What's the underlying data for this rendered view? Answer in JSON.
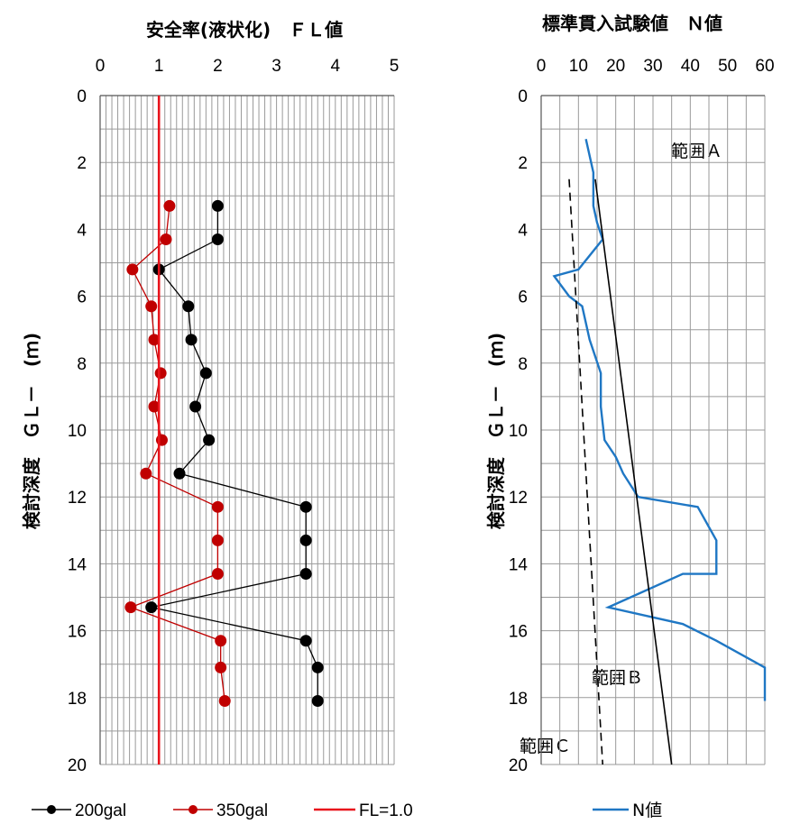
{
  "chart_data": [
    {
      "type": "line",
      "title": "安全率(液状化)　ＦＬ値",
      "ylabel": "検討深度　ＧＬ－　(ｍ)",
      "xlim": [
        0,
        5
      ],
      "ylim": [
        0,
        20
      ],
      "y_inverted": true,
      "x_ticks": [
        "0",
        "1",
        "2",
        "3",
        "4",
        "5"
      ],
      "y_ticks": [
        "0",
        "2",
        "4",
        "6",
        "8",
        "10",
        "12",
        "14",
        "16",
        "18",
        "20"
      ],
      "grid": true,
      "legend_position": "bottom",
      "series": [
        {
          "name": "200gal",
          "color": "#000000",
          "marker": "circle",
          "points": [
            [
              2.0,
              3.3
            ],
            [
              2.0,
              4.3
            ],
            [
              1.0,
              5.2
            ],
            [
              1.5,
              6.3
            ],
            [
              1.55,
              7.3
            ],
            [
              1.8,
              8.3
            ],
            [
              1.62,
              9.3
            ],
            [
              1.85,
              10.3
            ],
            [
              1.35,
              11.3
            ],
            [
              3.5,
              12.3
            ],
            [
              3.5,
              13.3
            ],
            [
              3.5,
              14.3
            ],
            [
              0.87,
              15.3
            ],
            [
              3.5,
              16.3
            ],
            [
              3.7,
              17.1
            ],
            [
              3.7,
              18.1
            ]
          ]
        },
        {
          "name": "350gal",
          "color": "#c00000",
          "marker": "circle",
          "points": [
            [
              1.18,
              3.3
            ],
            [
              1.12,
              4.3
            ],
            [
              0.55,
              5.2
            ],
            [
              0.87,
              6.3
            ],
            [
              0.92,
              7.3
            ],
            [
              1.03,
              8.3
            ],
            [
              0.92,
              9.3
            ],
            [
              1.05,
              10.3
            ],
            [
              0.78,
              11.3
            ],
            [
              2.0,
              12.3
            ],
            [
              2.0,
              13.3
            ],
            [
              2.0,
              14.3
            ],
            [
              0.52,
              15.3
            ],
            [
              2.05,
              16.3
            ],
            [
              2.05,
              17.1
            ],
            [
              2.12,
              18.1
            ]
          ]
        },
        {
          "name": "FL=1.0",
          "color": "#e8141c",
          "marker": "none",
          "points": [
            [
              1.0,
              0
            ],
            [
              1.0,
              20
            ]
          ]
        }
      ]
    },
    {
      "type": "line",
      "title": "標準貫入試験値　Ｎ値",
      "ylabel": "検討深度　ＧＬ－　(ｍ)",
      "xlim": [
        0,
        60
      ],
      "ylim": [
        0,
        20
      ],
      "y_inverted": true,
      "x_ticks": [
        "0",
        "10",
        "20",
        "30",
        "40",
        "50",
        "60"
      ],
      "y_ticks": [
        "0",
        "2",
        "4",
        "6",
        "8",
        "10",
        "12",
        "14",
        "16",
        "18",
        "20"
      ],
      "grid": true,
      "legend_position": "bottom",
      "annotations": [
        "範囲Ａ",
        "範囲Ｂ",
        "範囲Ｃ"
      ],
      "series": [
        {
          "name": "N値",
          "color": "#1f77c4",
          "marker": "none",
          "points": [
            [
              12,
              1.3
            ],
            [
              14,
              2.3
            ],
            [
              14,
              3.3
            ],
            [
              15,
              3.8
            ],
            [
              16.5,
              4.3
            ],
            [
              10,
              5.2
            ],
            [
              3.5,
              5.4
            ],
            [
              7.5,
              6.0
            ],
            [
              11,
              6.3
            ],
            [
              13,
              7.3
            ],
            [
              16,
              8.3
            ],
            [
              16,
              9.3
            ],
            [
              17,
              10.3
            ],
            [
              20,
              10.8
            ],
            [
              22,
              11.3
            ],
            [
              26,
              12.0
            ],
            [
              42,
              12.3
            ],
            [
              47,
              13.3
            ],
            [
              47,
              14.3
            ],
            [
              38,
              14.3
            ],
            [
              18,
              15.3
            ],
            [
              38,
              15.8
            ],
            [
              47,
              16.3
            ],
            [
              60,
              17.1
            ],
            [
              60,
              18.1
            ]
          ]
        },
        {
          "name": "",
          "color": "#000000",
          "marker": "none",
          "style": "solid",
          "points": [
            [
              14.5,
              2.5
            ],
            [
              35,
              20
            ]
          ]
        },
        {
          "name": "",
          "color": "#000000",
          "marker": "none",
          "style": "dashed",
          "points": [
            [
              7.5,
              2.5
            ],
            [
              16.5,
              20
            ]
          ]
        }
      ]
    }
  ]
}
